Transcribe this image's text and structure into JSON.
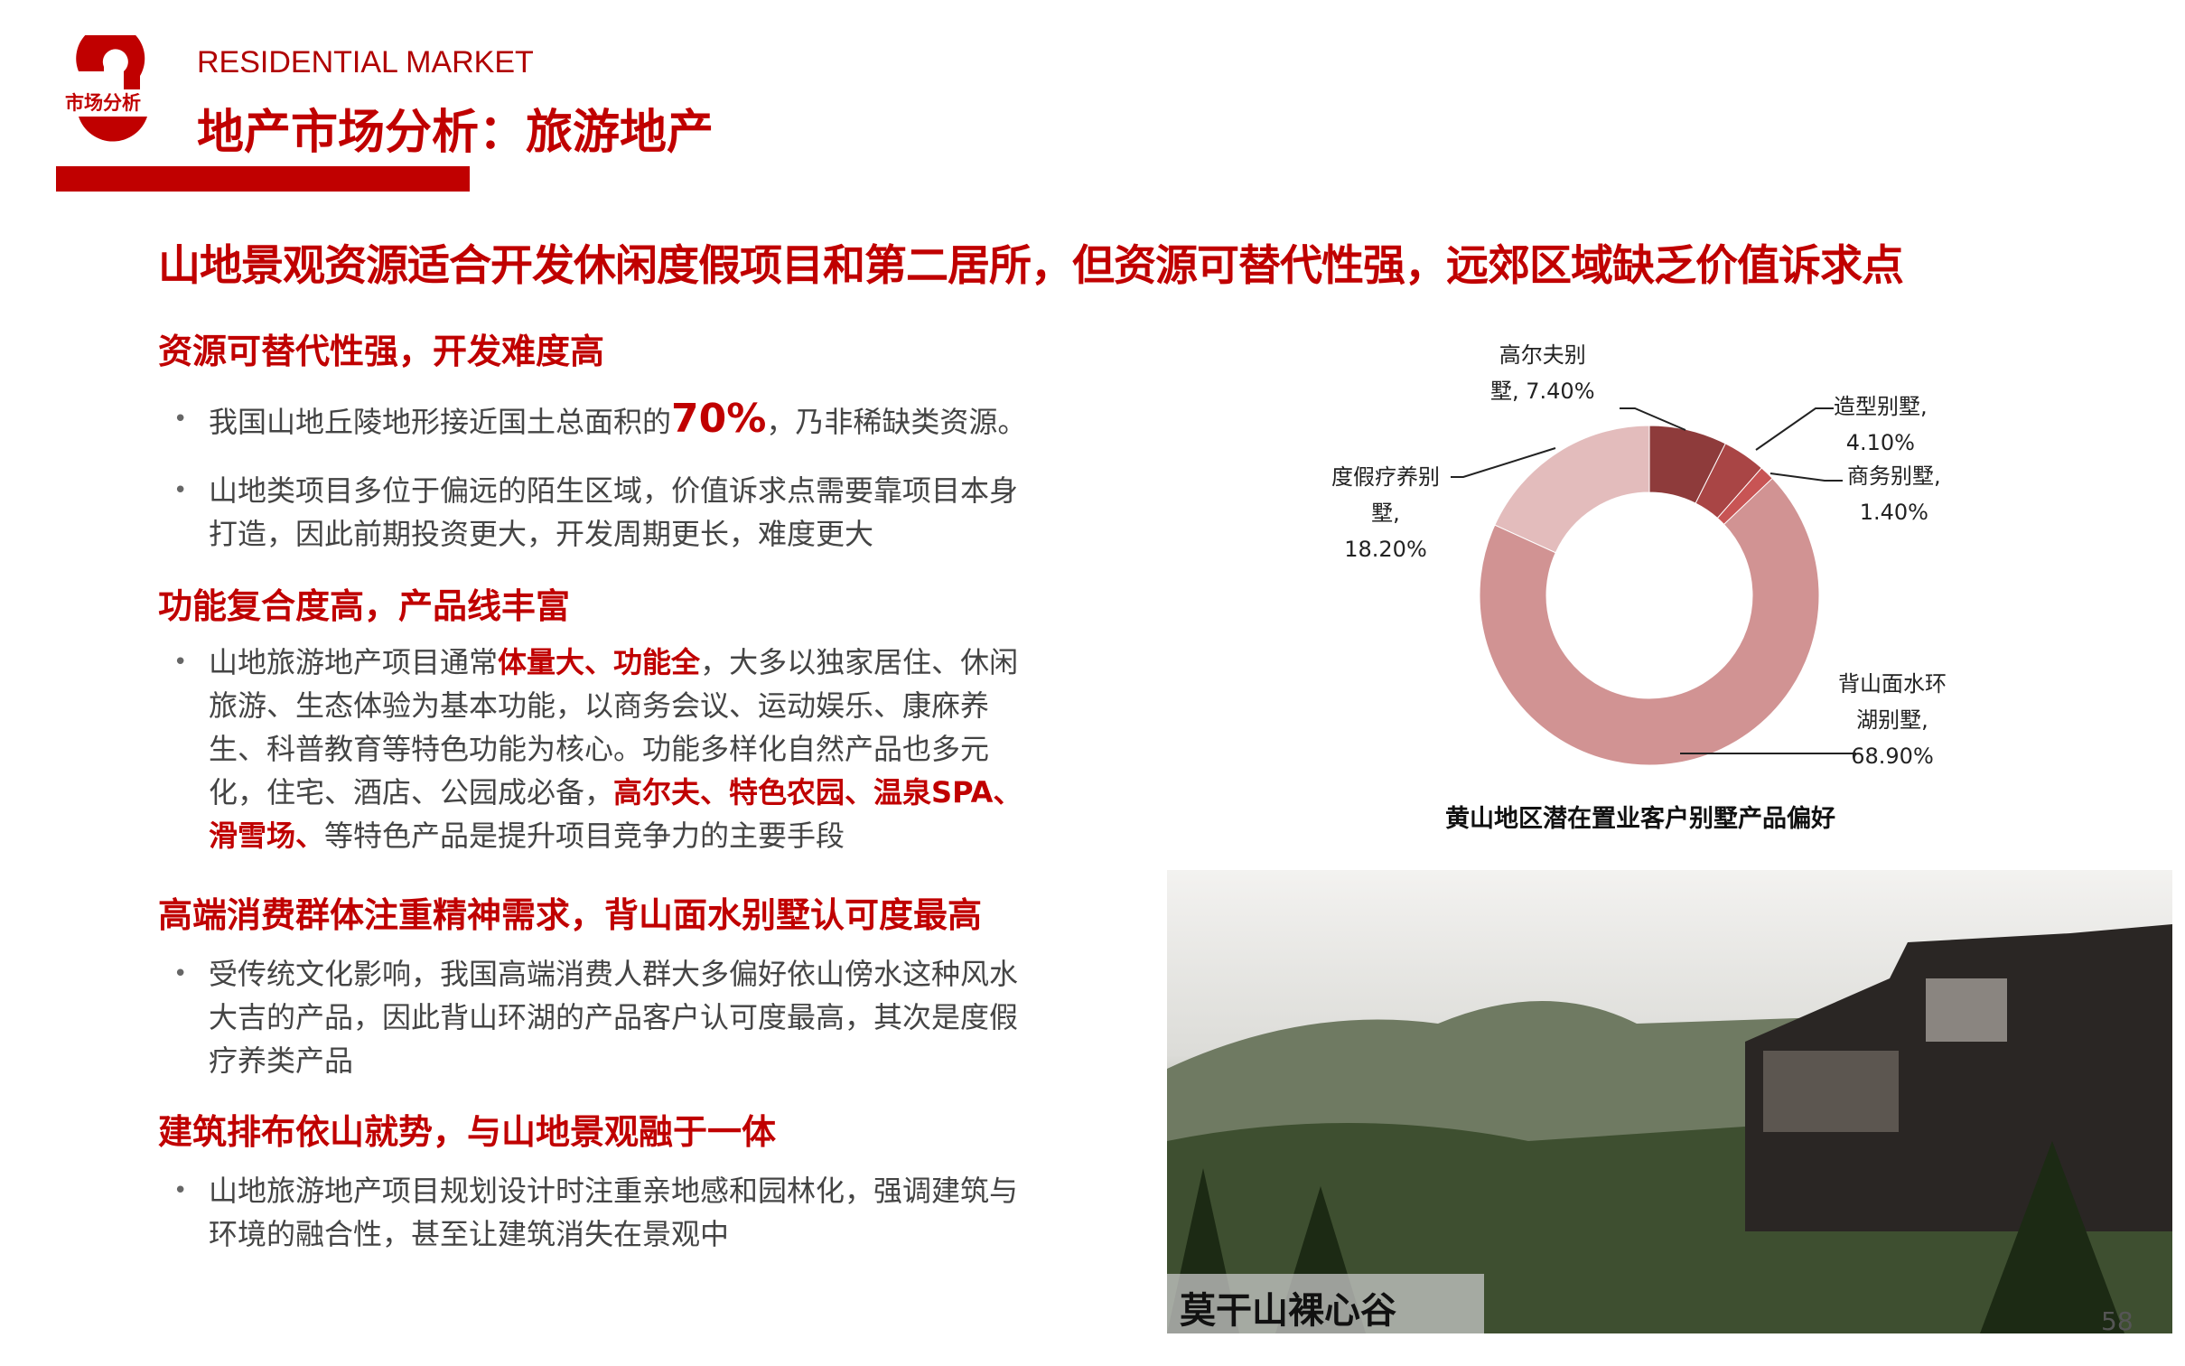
{
  "header": {
    "logo_text": "市场分析",
    "subtitle": "RESIDENTIAL MARKET",
    "title": "地产市场分析：旅游地产"
  },
  "headline": "山地景观资源适合开发休闲度假项目和第二居所，但资源可替代性强，远郊区域缺乏价值诉求点",
  "sections": [
    {
      "title": "资源可替代性强，开发难度高",
      "b1_pre": "我国山地丘陵地形接近国土总面积的",
      "b1_big": "70%",
      "b1_post": "，乃非稀缺类资源。",
      "b2": "山地类项目多位于偏远的陌生区域，价值诉求点需要靠项目本身打造，因此前期投资更大，开发周期更长，难度更大"
    },
    {
      "title": "功能复合度高，产品线丰富",
      "t1": "山地旅游地产项目通常",
      "h1": "体量大",
      "t2": "、",
      "h2": "功能全",
      "t3": "，大多以独家居住、休闲旅游、生态体验为基本功能，以商务会议、运动娱乐、康庥养生、科普教育等特色功能为核心。功能多样化自然产品也多元化，住宅、酒店、公园成必备，",
      "h3": "高尔夫、特色农园、温泉SPA、滑雪场、",
      "t4": "等特色产品是提升项目竞争力的主要手段"
    },
    {
      "title": "高端消费群体注重精神需求，背山面水别墅认可度最高",
      "b1": "受传统文化影响，我国高端消费人群大多偏好依山傍水这种风水大吉的产品，因此背山环湖的产品客户认可度最高，其次是度假疗养类产品"
    },
    {
      "title": "建筑排布依山就势，与山地景观融于一体",
      "b1": "山地旅游地产项目规划设计时注重亲地感和园林化，强调建筑与环境的融合性，甚至让建筑消失在景观中"
    }
  ],
  "chart_data": {
    "type": "pie",
    "donut": true,
    "title": "黄山地区潜在置业客户别墅产品偏好",
    "categories": [
      "高尔夫别墅",
      "造型别墅",
      "商务别墅",
      "背山面水环湖别墅",
      "度假疗养别墅"
    ],
    "values": [
      7.4,
      4.1,
      1.4,
      68.9,
      18.2
    ],
    "labels": [
      [
        "高尔夫别",
        "墅, 7.40%"
      ],
      [
        "造型别墅,",
        "4.10%"
      ],
      [
        "商务别墅,",
        "1.40%"
      ],
      [
        "背山面水环",
        "湖别墅,",
        "68.90%"
      ],
      [
        "度假疗养别",
        "墅,",
        "18.20%"
      ]
    ],
    "colors": [
      "#8e3b3b",
      "#a94545",
      "#c85454",
      "#d19393",
      "#e3bcbc"
    ]
  },
  "photo": {
    "caption": "莫干山裸心谷"
  },
  "page_number": "58"
}
